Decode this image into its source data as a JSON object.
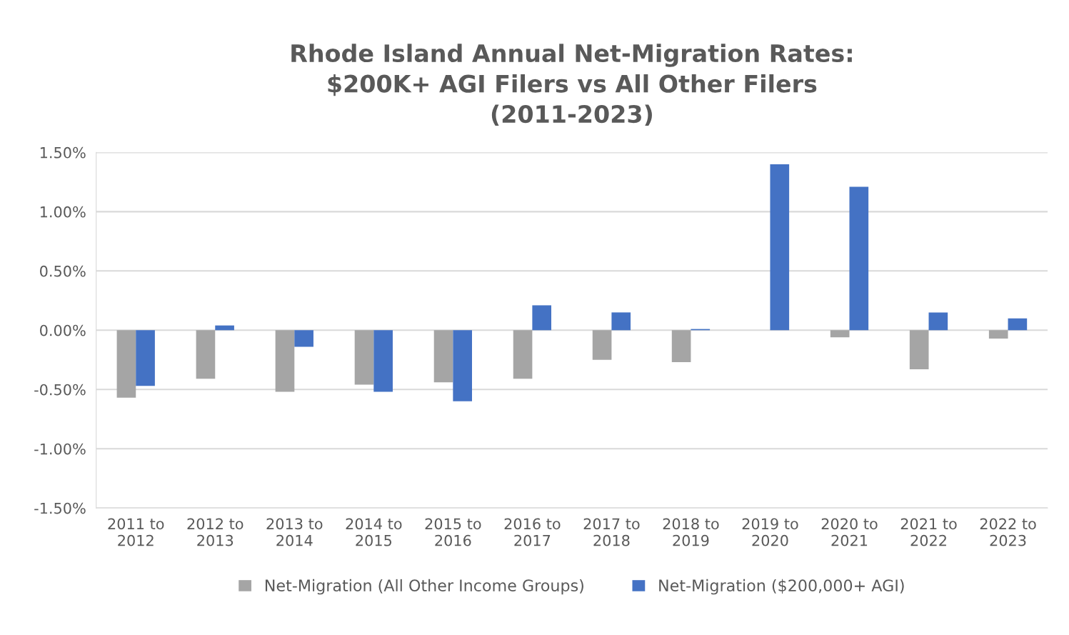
{
  "chart_data": {
    "type": "bar",
    "title": "Rhode Island Annual Net-Migration Rates:\n$200K+ AGI Filers vs All Other Filers\n(2011-2023)",
    "categories": [
      "2011 to\n2012",
      "2012 to\n2013",
      "2013 to\n2014",
      "2014 to\n2015",
      "2015 to\n2016",
      "2016 to\n2017",
      "2017 to\n2018",
      "2018 to\n2019",
      "2019 to\n2020",
      "2020 to\n2021",
      "2021 to\n2022",
      "2022 to\n2023"
    ],
    "series": [
      {
        "name": "Net-Migration (All Other Income Groups)",
        "color": "#a5a5a5",
        "values": [
          -0.57,
          -0.41,
          -0.52,
          -0.46,
          -0.44,
          -0.41,
          -0.25,
          -0.27,
          null,
          -0.06,
          -0.33,
          -0.07
        ]
      },
      {
        "name": "Net-Migration ($200,000+ AGI)",
        "color": "#4472c4",
        "values": [
          -0.47,
          0.04,
          -0.14,
          -0.52,
          -0.6,
          0.21,
          0.15,
          0.01,
          1.4,
          1.21,
          0.15,
          0.1
        ]
      }
    ],
    "ylim": [
      -1.5,
      1.5
    ],
    "yticks": [
      {
        "value": -1.5,
        "label": "-1.50%"
      },
      {
        "value": -1.0,
        "label": "-1.00%"
      },
      {
        "value": -0.5,
        "label": "-0.50%"
      },
      {
        "value": 0,
        "label": "0.00%"
      },
      {
        "value": 0.5,
        "label": "0.50%"
      },
      {
        "value": 1.0,
        "label": "1.00%"
      },
      {
        "value": 1.5,
        "label": "1.50%"
      }
    ],
    "grid": "y",
    "legend": "bottom"
  }
}
